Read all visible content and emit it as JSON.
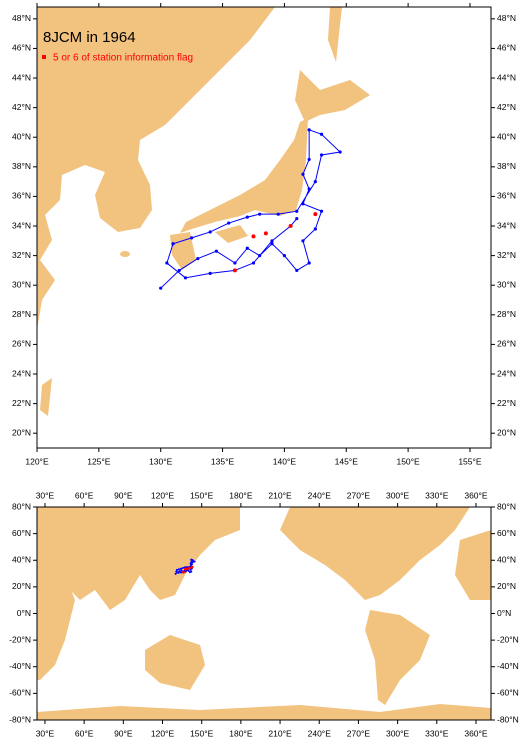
{
  "title": "8JCM in 1964",
  "legend": {
    "label": "5 or 6 of station information flag",
    "color": "#ff0000"
  },
  "regional_map": {
    "xlim": [
      120,
      156.7
    ],
    "ylim": [
      19,
      48.8
    ],
    "xticks": [
      {
        "value": 120,
        "label": "120°E"
      },
      {
        "value": 125,
        "label": "125°E"
      },
      {
        "value": 130,
        "label": "130°E"
      },
      {
        "value": 135,
        "label": "135°E"
      },
      {
        "value": 140,
        "label": "140°E"
      },
      {
        "value": 145,
        "label": "145°E"
      },
      {
        "value": 150,
        "label": "150°E"
      },
      {
        "value": 155,
        "label": "155°E"
      }
    ],
    "yticks": [
      {
        "value": 20,
        "label": "20°N"
      },
      {
        "value": 22,
        "label": "22°N"
      },
      {
        "value": 24,
        "label": "24°N"
      },
      {
        "value": 26,
        "label": "26°N"
      },
      {
        "value": 28,
        "label": "28°N"
      },
      {
        "value": 30,
        "label": "30°N"
      },
      {
        "value": 32,
        "label": "32°N"
      },
      {
        "value": 34,
        "label": "34°N"
      },
      {
        "value": 36,
        "label": "36°N"
      },
      {
        "value": 38,
        "label": "38°N"
      },
      {
        "value": 40,
        "label": "40°N"
      },
      {
        "value": 42,
        "label": "42°N"
      },
      {
        "value": 44,
        "label": "44°N"
      },
      {
        "value": 46,
        "label": "46°N"
      },
      {
        "value": 48,
        "label": "48°N"
      }
    ]
  },
  "global_map": {
    "xlim": [
      23.9,
      371.5
    ],
    "ylim": [
      -80,
      80
    ],
    "xticks": [
      {
        "value": 30,
        "label": "30°E"
      },
      {
        "value": 60,
        "label": "60°E"
      },
      {
        "value": 90,
        "label": "90°E"
      },
      {
        "value": 120,
        "label": "120°E"
      },
      {
        "value": 150,
        "label": "150°E"
      },
      {
        "value": 180,
        "label": "180°E"
      },
      {
        "value": 210,
        "label": "210°E"
      },
      {
        "value": 240,
        "label": "240°E"
      },
      {
        "value": 270,
        "label": "270°E"
      },
      {
        "value": 300,
        "label": "300°E"
      },
      {
        "value": 330,
        "label": "330°E"
      },
      {
        "value": 360,
        "label": "360°E"
      }
    ],
    "yticks": [
      {
        "value": -80,
        "label": "-80°N"
      },
      {
        "value": -60,
        "label": "-60°N"
      },
      {
        "value": -40,
        "label": "-40°N"
      },
      {
        "value": -20,
        "label": "-20°N"
      },
      {
        "value": 0,
        "label": "0°N"
      },
      {
        "value": 20,
        "label": "20°N"
      },
      {
        "value": 40,
        "label": "40°N"
      },
      {
        "value": 60,
        "label": "60°N"
      },
      {
        "value": 80,
        "label": "80°N"
      }
    ]
  },
  "track": {
    "color": "#0000ff",
    "lon": [
      130,
      131.5,
      133,
      134.5,
      136,
      137,
      138,
      139,
      140,
      141,
      142,
      141.5,
      142.5,
      143,
      141.5,
      142,
      141.5,
      142,
      142,
      143,
      144.5,
      143,
      142.5,
      141,
      139.5,
      138,
      137,
      135.5,
      134,
      132.5,
      131,
      130.5,
      132,
      134,
      136,
      137.5,
      139,
      140.5,
      141
    ],
    "lat": [
      29.8,
      31,
      31.8,
      32.3,
      31.5,
      32.5,
      32,
      32.8,
      32,
      31,
      31.5,
      33,
      33.8,
      35,
      35.5,
      36.5,
      37.5,
      38.5,
      40.5,
      40.2,
      39,
      38.8,
      37,
      35,
      34.8,
      34.8,
      34.6,
      34.2,
      33.6,
      33.2,
      32.8,
      31.5,
      30.5,
      30.8,
      31,
      31.5,
      33,
      34,
      34.5
    ]
  },
  "flagged": {
    "lon": [
      136,
      137.5,
      138.5,
      140.5,
      142.5
    ],
    "lat": [
      31,
      33.3,
      33.5,
      34,
      34.8
    ]
  }
}
